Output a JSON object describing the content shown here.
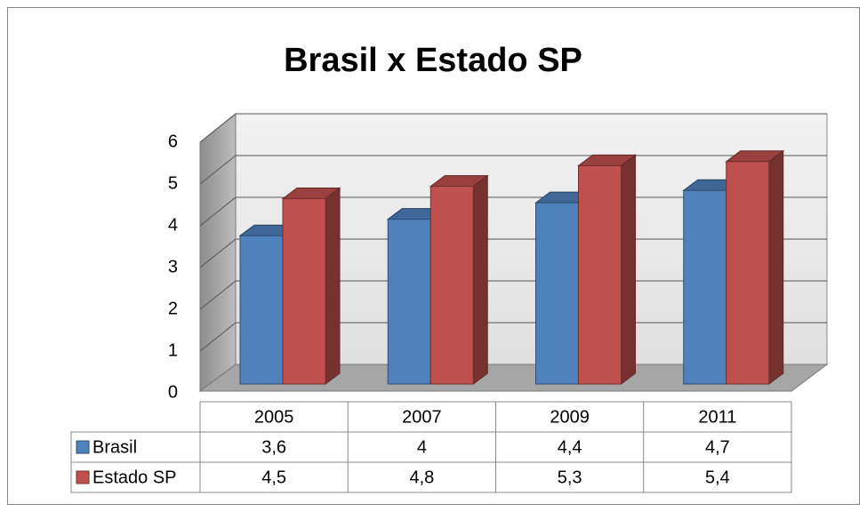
{
  "chart_data": {
    "type": "bar3d",
    "title": "Brasil x Estado SP",
    "categories": [
      "2005",
      "2007",
      "2009",
      "2011"
    ],
    "series": [
      {
        "name": "Brasil",
        "color": "#4f81bd",
        "values": [
          3.6,
          4,
          4.4,
          4.7
        ],
        "value_labels": [
          "3,6",
          "4",
          "4,4",
          "4,7"
        ]
      },
      {
        "name": "Estado SP",
        "color": "#c0504d",
        "values": [
          4.5,
          4.8,
          5.3,
          5.4
        ],
        "value_labels": [
          "4,5",
          "4,8",
          "5,3",
          "5,4"
        ]
      }
    ],
    "ylim": [
      0,
      6
    ],
    "yticks": [
      0,
      1,
      2,
      3,
      4,
      5,
      6
    ],
    "grid": true,
    "data_table": true
  }
}
